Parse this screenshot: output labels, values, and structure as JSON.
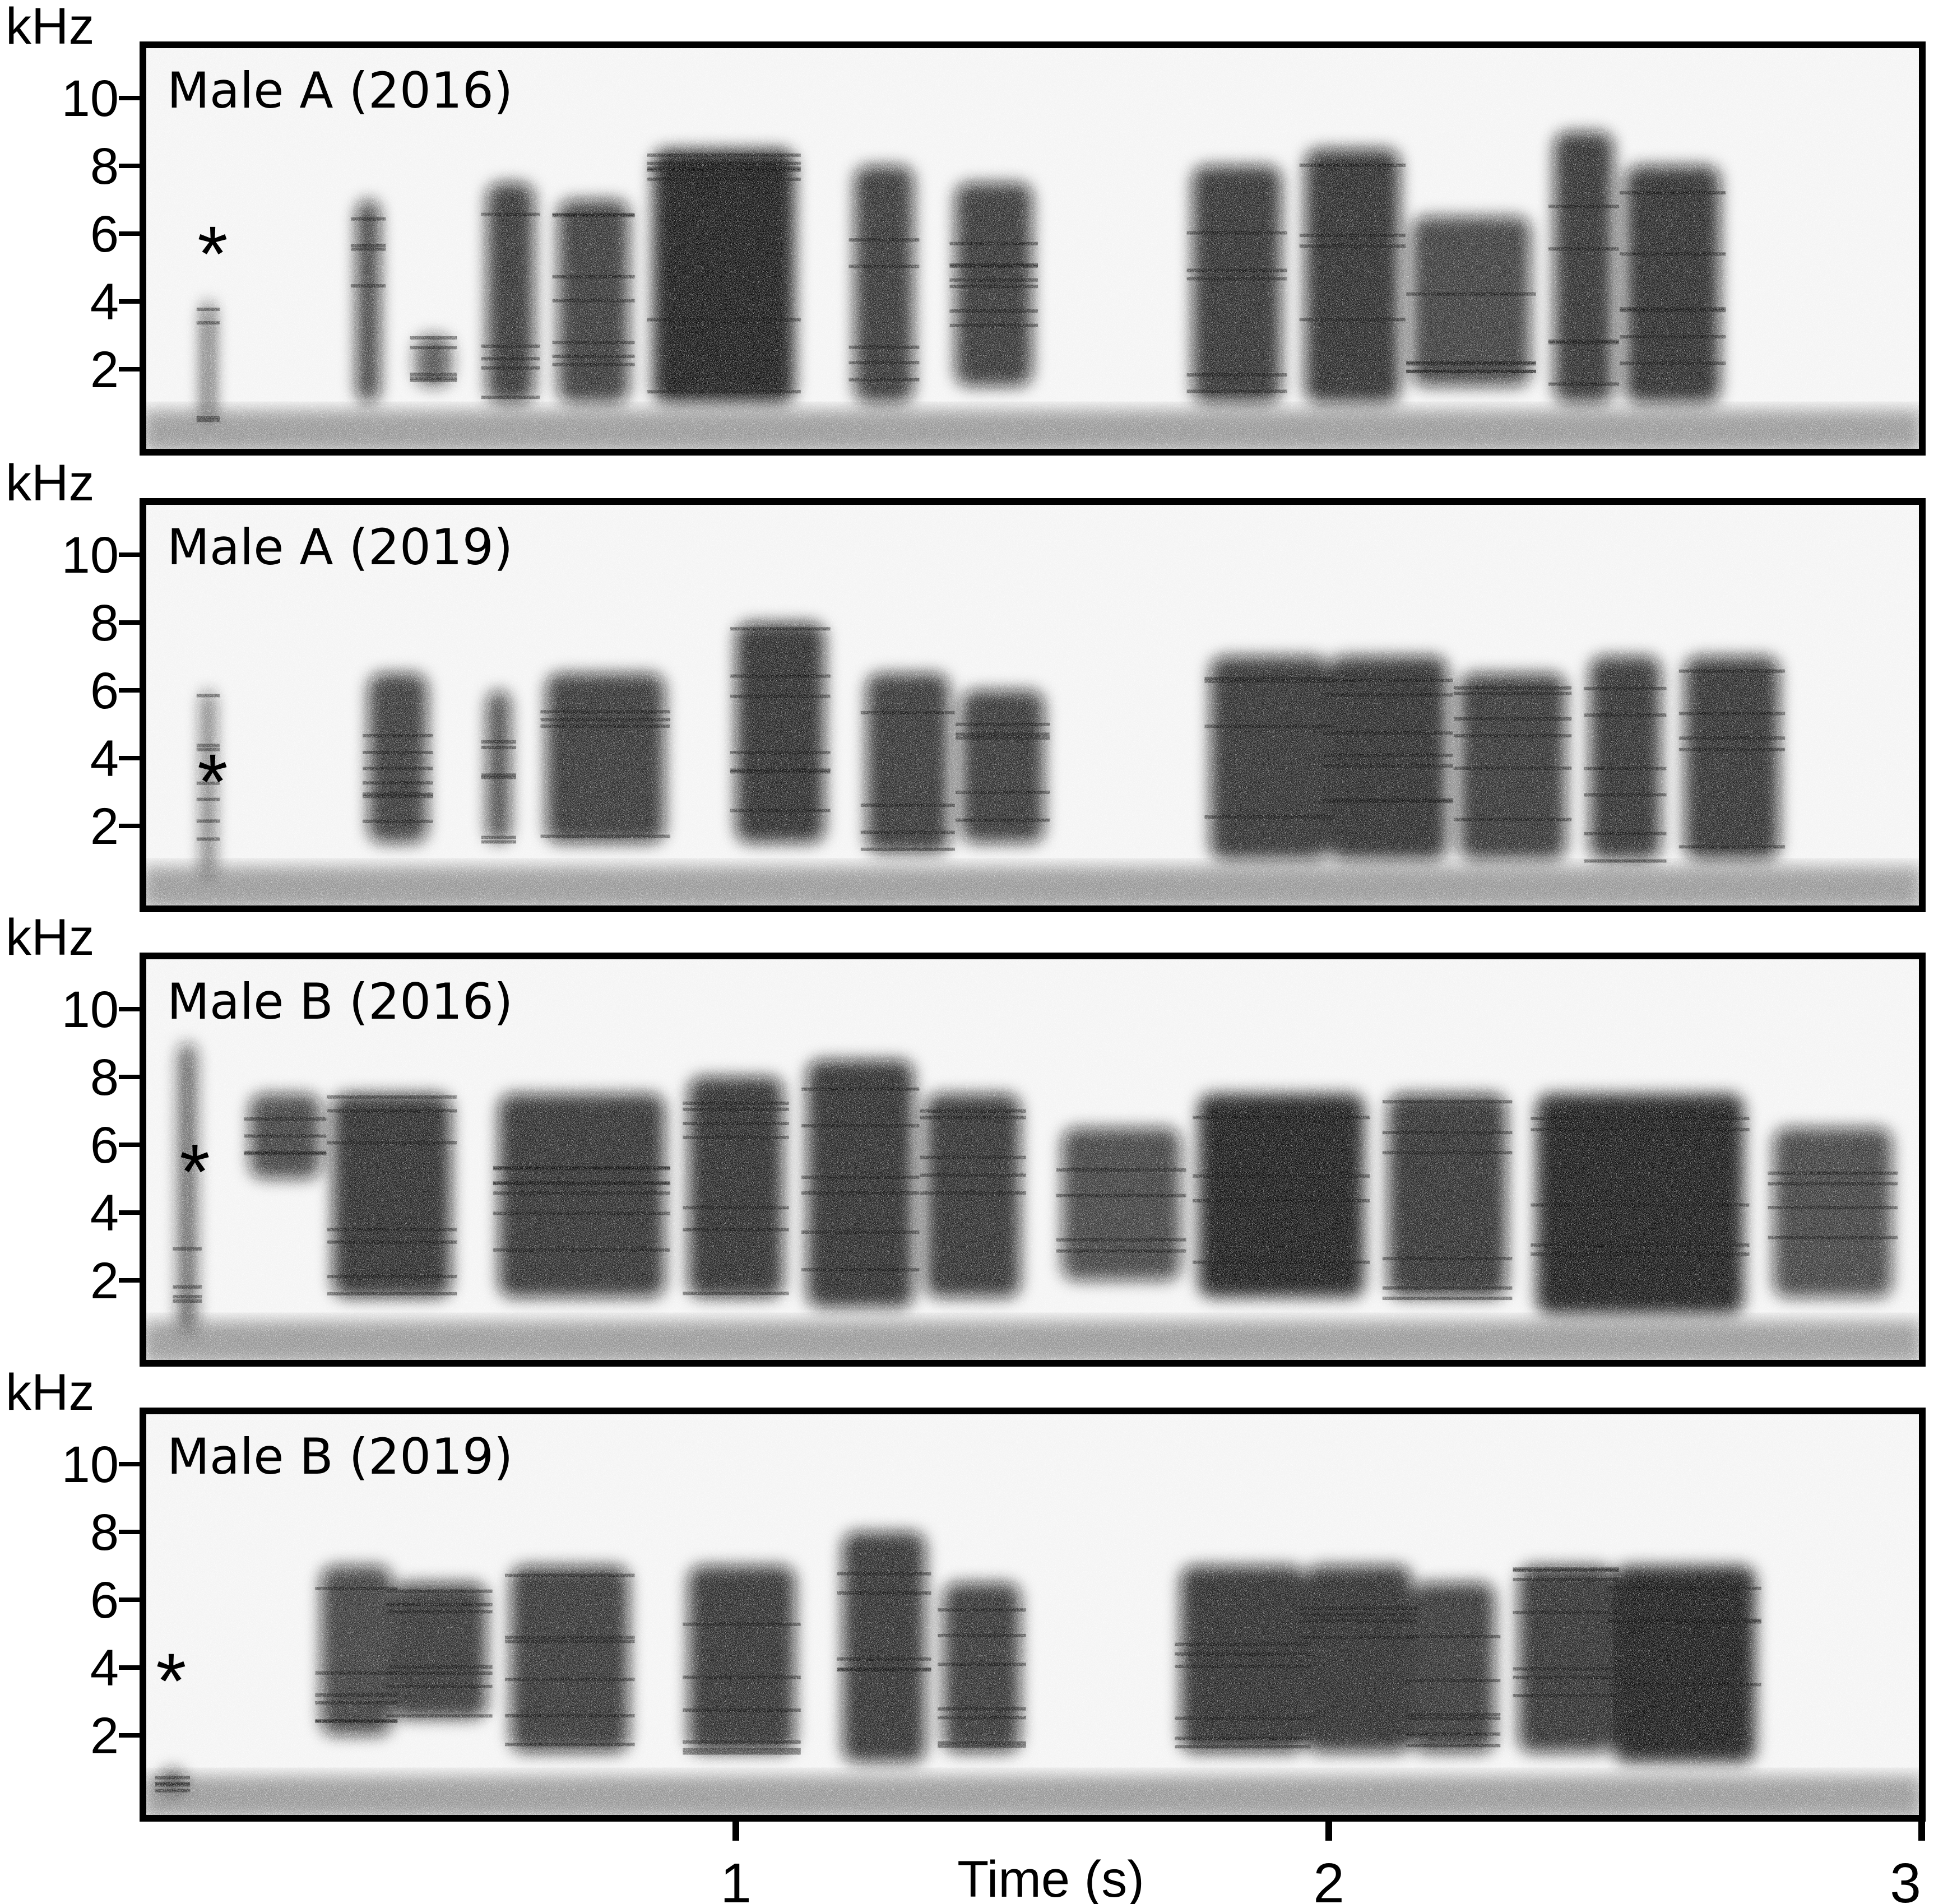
{
  "chart_data": {
    "type": "heatmap",
    "subtype": "spectrogram",
    "colormap": "grayscale (white = silence, black = high energy)",
    "xlabel": "Time (s)",
    "x_ticks": [
      "1",
      "2",
      "3"
    ],
    "xlim": [
      0,
      3
    ],
    "ylim": [
      0,
      11
    ],
    "grid": false,
    "panels": [
      {
        "label": "Male A (2016)",
        "ylabel": "kHz",
        "y_ticks": [
          "10",
          "8",
          "6",
          "4",
          "2"
        ],
        "marker": "*",
        "marker_time": 0.11,
        "marker_khz": 5.6,
        "syllables": [
          {
            "t0": 0.1,
            "t1": 0.12,
            "f0": 0.5,
            "f1": 4.0,
            "d": 0.7
          },
          {
            "t0": 0.36,
            "t1": 0.4,
            "f0": 1.0,
            "f1": 7.0,
            "d": 0.8
          },
          {
            "t0": 0.46,
            "t1": 0.52,
            "f0": 1.5,
            "f1": 3.0,
            "d": 0.6
          },
          {
            "t0": 0.58,
            "t1": 0.66,
            "f0": 1.0,
            "f1": 7.5,
            "d": 0.85
          },
          {
            "t0": 0.7,
            "t1": 0.82,
            "f0": 1.0,
            "f1": 7.0,
            "d": 0.8
          },
          {
            "t0": 0.86,
            "t1": 1.1,
            "f0": 1.0,
            "f1": 8.5,
            "d": 1.0
          },
          {
            "t0": 1.2,
            "t1": 1.3,
            "f0": 1.0,
            "f1": 8.0,
            "d": 0.85
          },
          {
            "t0": 1.37,
            "t1": 1.5,
            "f0": 1.5,
            "f1": 7.5,
            "d": 0.85
          },
          {
            "t0": 1.77,
            "t1": 1.92,
            "f0": 1.0,
            "f1": 8.0,
            "d": 0.9
          },
          {
            "t0": 1.96,
            "t1": 2.12,
            "f0": 1.0,
            "f1": 8.5,
            "d": 0.95
          },
          {
            "t0": 2.14,
            "t1": 2.34,
            "f0": 1.5,
            "f1": 6.5,
            "d": 0.75
          },
          {
            "t0": 2.38,
            "t1": 2.48,
            "f0": 1.0,
            "f1": 9.0,
            "d": 0.9
          },
          {
            "t0": 2.5,
            "t1": 2.66,
            "f0": 1.0,
            "f1": 8.0,
            "d": 0.95
          }
        ]
      },
      {
        "label": "Male A (2019)",
        "ylabel": "kHz",
        "y_ticks": [
          "10",
          "8",
          "6",
          "4",
          "2"
        ],
        "marker": "*",
        "marker_time": 0.11,
        "marker_khz": 3.5,
        "syllables": [
          {
            "t0": 0.1,
            "t1": 0.12,
            "f0": 0.5,
            "f1": 6.0,
            "d": 0.6
          },
          {
            "t0": 0.38,
            "t1": 0.48,
            "f0": 1.5,
            "f1": 6.5,
            "d": 0.8
          },
          {
            "t0": 0.58,
            "t1": 0.62,
            "f0": 1.5,
            "f1": 6.0,
            "d": 0.7
          },
          {
            "t0": 0.68,
            "t1": 0.88,
            "f0": 1.5,
            "f1": 6.5,
            "d": 0.85
          },
          {
            "t0": 1.0,
            "t1": 1.15,
            "f0": 1.5,
            "f1": 8.0,
            "d": 0.95
          },
          {
            "t0": 1.22,
            "t1": 1.36,
            "f0": 1.2,
            "f1": 6.5,
            "d": 0.85
          },
          {
            "t0": 1.38,
            "t1": 1.52,
            "f0": 1.5,
            "f1": 6.0,
            "d": 0.85
          },
          {
            "t0": 1.8,
            "t1": 2.0,
            "f0": 1.0,
            "f1": 7.0,
            "d": 0.9
          },
          {
            "t0": 2.0,
            "t1": 2.2,
            "f0": 1.0,
            "f1": 7.0,
            "d": 0.95
          },
          {
            "t0": 2.22,
            "t1": 2.4,
            "f0": 1.0,
            "f1": 6.5,
            "d": 0.85
          },
          {
            "t0": 2.44,
            "t1": 2.56,
            "f0": 1.0,
            "f1": 7.0,
            "d": 0.9
          },
          {
            "t0": 2.6,
            "t1": 2.76,
            "f0": 1.0,
            "f1": 7.0,
            "d": 0.9
          }
        ]
      },
      {
        "label": "Male B (2016)",
        "ylabel": "kHz",
        "y_ticks": [
          "10",
          "8",
          "6",
          "4",
          "2"
        ],
        "marker": "*",
        "marker_time": 0.08,
        "marker_khz": 5.4,
        "syllables": [
          {
            "t0": 0.06,
            "t1": 0.09,
            "f0": 0.5,
            "f1": 9.0,
            "d": 0.6
          },
          {
            "t0": 0.18,
            "t1": 0.3,
            "f0": 5.0,
            "f1": 7.5,
            "d": 0.7
          },
          {
            "t0": 0.32,
            "t1": 0.52,
            "f0": 1.5,
            "f1": 7.5,
            "d": 0.95
          },
          {
            "t0": 0.6,
            "t1": 0.88,
            "f0": 1.5,
            "f1": 7.5,
            "d": 0.9
          },
          {
            "t0": 0.92,
            "t1": 1.08,
            "f0": 1.5,
            "f1": 8.0,
            "d": 0.95
          },
          {
            "t0": 1.12,
            "t1": 1.3,
            "f0": 1.2,
            "f1": 8.5,
            "d": 0.95
          },
          {
            "t0": 1.32,
            "t1": 1.48,
            "f0": 1.5,
            "f1": 7.5,
            "d": 0.9
          },
          {
            "t0": 1.55,
            "t1": 1.75,
            "f0": 2.0,
            "f1": 6.5,
            "d": 0.7
          },
          {
            "t0": 1.78,
            "t1": 2.06,
            "f0": 1.5,
            "f1": 7.5,
            "d": 1.0
          },
          {
            "t0": 2.1,
            "t1": 2.3,
            "f0": 1.5,
            "f1": 7.5,
            "d": 0.9
          },
          {
            "t0": 2.35,
            "t1": 2.7,
            "f0": 1.0,
            "f1": 7.5,
            "d": 1.0
          },
          {
            "t0": 2.75,
            "t1": 2.95,
            "f0": 1.5,
            "f1": 6.5,
            "d": 0.7
          }
        ]
      },
      {
        "label": "Male B (2019)",
        "ylabel": "kHz",
        "y_ticks": [
          "10",
          "8",
          "6",
          "4",
          "2"
        ],
        "marker": "*",
        "marker_time": 0.04,
        "marker_khz": 3.8,
        "syllables": [
          {
            "t0": 0.03,
            "t1": 0.07,
            "f0": 0.3,
            "f1": 1.0,
            "d": 0.6
          },
          {
            "t0": 0.3,
            "t1": 0.42,
            "f0": 2.0,
            "f1": 7.0,
            "d": 0.75
          },
          {
            "t0": 0.42,
            "t1": 0.58,
            "f0": 2.5,
            "f1": 6.5,
            "d": 0.85
          },
          {
            "t0": 0.62,
            "t1": 0.82,
            "f0": 1.5,
            "f1": 7.0,
            "d": 0.85
          },
          {
            "t0": 0.92,
            "t1": 1.1,
            "f0": 1.5,
            "f1": 7.0,
            "d": 0.9
          },
          {
            "t0": 1.18,
            "t1": 1.32,
            "f0": 1.2,
            "f1": 8.0,
            "d": 0.9
          },
          {
            "t0": 1.35,
            "t1": 1.48,
            "f0": 1.5,
            "f1": 6.5,
            "d": 0.85
          },
          {
            "t0": 1.75,
            "t1": 1.96,
            "f0": 1.5,
            "f1": 7.0,
            "d": 0.95
          },
          {
            "t0": 1.96,
            "t1": 2.14,
            "f0": 1.5,
            "f1": 7.0,
            "d": 0.95
          },
          {
            "t0": 2.14,
            "t1": 2.28,
            "f0": 1.5,
            "f1": 6.5,
            "d": 0.85
          },
          {
            "t0": 2.32,
            "t1": 2.48,
            "f0": 1.5,
            "f1": 7.0,
            "d": 0.9
          },
          {
            "t0": 2.48,
            "t1": 2.72,
            "f0": 1.2,
            "f1": 7.0,
            "d": 1.0
          }
        ]
      }
    ]
  }
}
